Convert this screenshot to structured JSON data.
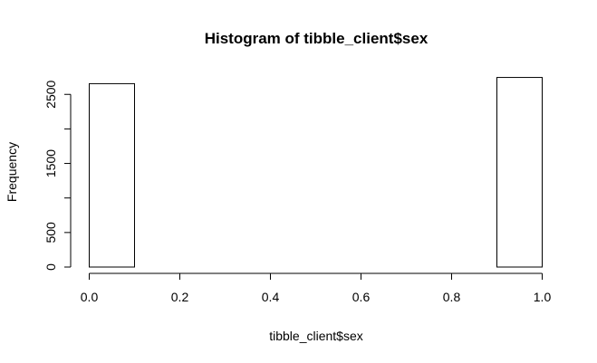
{
  "chart_data": {
    "type": "bar",
    "title": "Histogram of tibble_client$sex",
    "xlabel": "tibble_client$sex",
    "ylabel": "Frequency",
    "bins": [
      {
        "x0": 0.0,
        "x1": 0.1,
        "count": 2655
      },
      {
        "x0": 0.1,
        "x1": 0.2,
        "count": 0
      },
      {
        "x0": 0.2,
        "x1": 0.3,
        "count": 0
      },
      {
        "x0": 0.3,
        "x1": 0.4,
        "count": 0
      },
      {
        "x0": 0.4,
        "x1": 0.5,
        "count": 0
      },
      {
        "x0": 0.5,
        "x1": 0.6,
        "count": 0
      },
      {
        "x0": 0.6,
        "x1": 0.7,
        "count": 0
      },
      {
        "x0": 0.7,
        "x1": 0.8,
        "count": 0
      },
      {
        "x0": 0.8,
        "x1": 0.9,
        "count": 0
      },
      {
        "x0": 0.9,
        "x1": 1.0,
        "count": 2745
      }
    ],
    "xlim": [
      0,
      1
    ],
    "ylim": [
      0,
      2745
    ],
    "x_ticks": [
      0.0,
      0.2,
      0.4,
      0.6,
      0.8,
      1.0
    ],
    "x_tick_labels": [
      "0.0",
      "0.2",
      "0.4",
      "0.6",
      "0.8",
      "1.0"
    ],
    "y_ticks": [
      0,
      500,
      1000,
      1500,
      2000,
      2500
    ],
    "y_tick_labels": [
      "0",
      "500",
      "",
      "1500",
      "",
      "2500"
    ],
    "grid": false,
    "bar_fill": "#ffffff",
    "bar_stroke": "#000000"
  }
}
